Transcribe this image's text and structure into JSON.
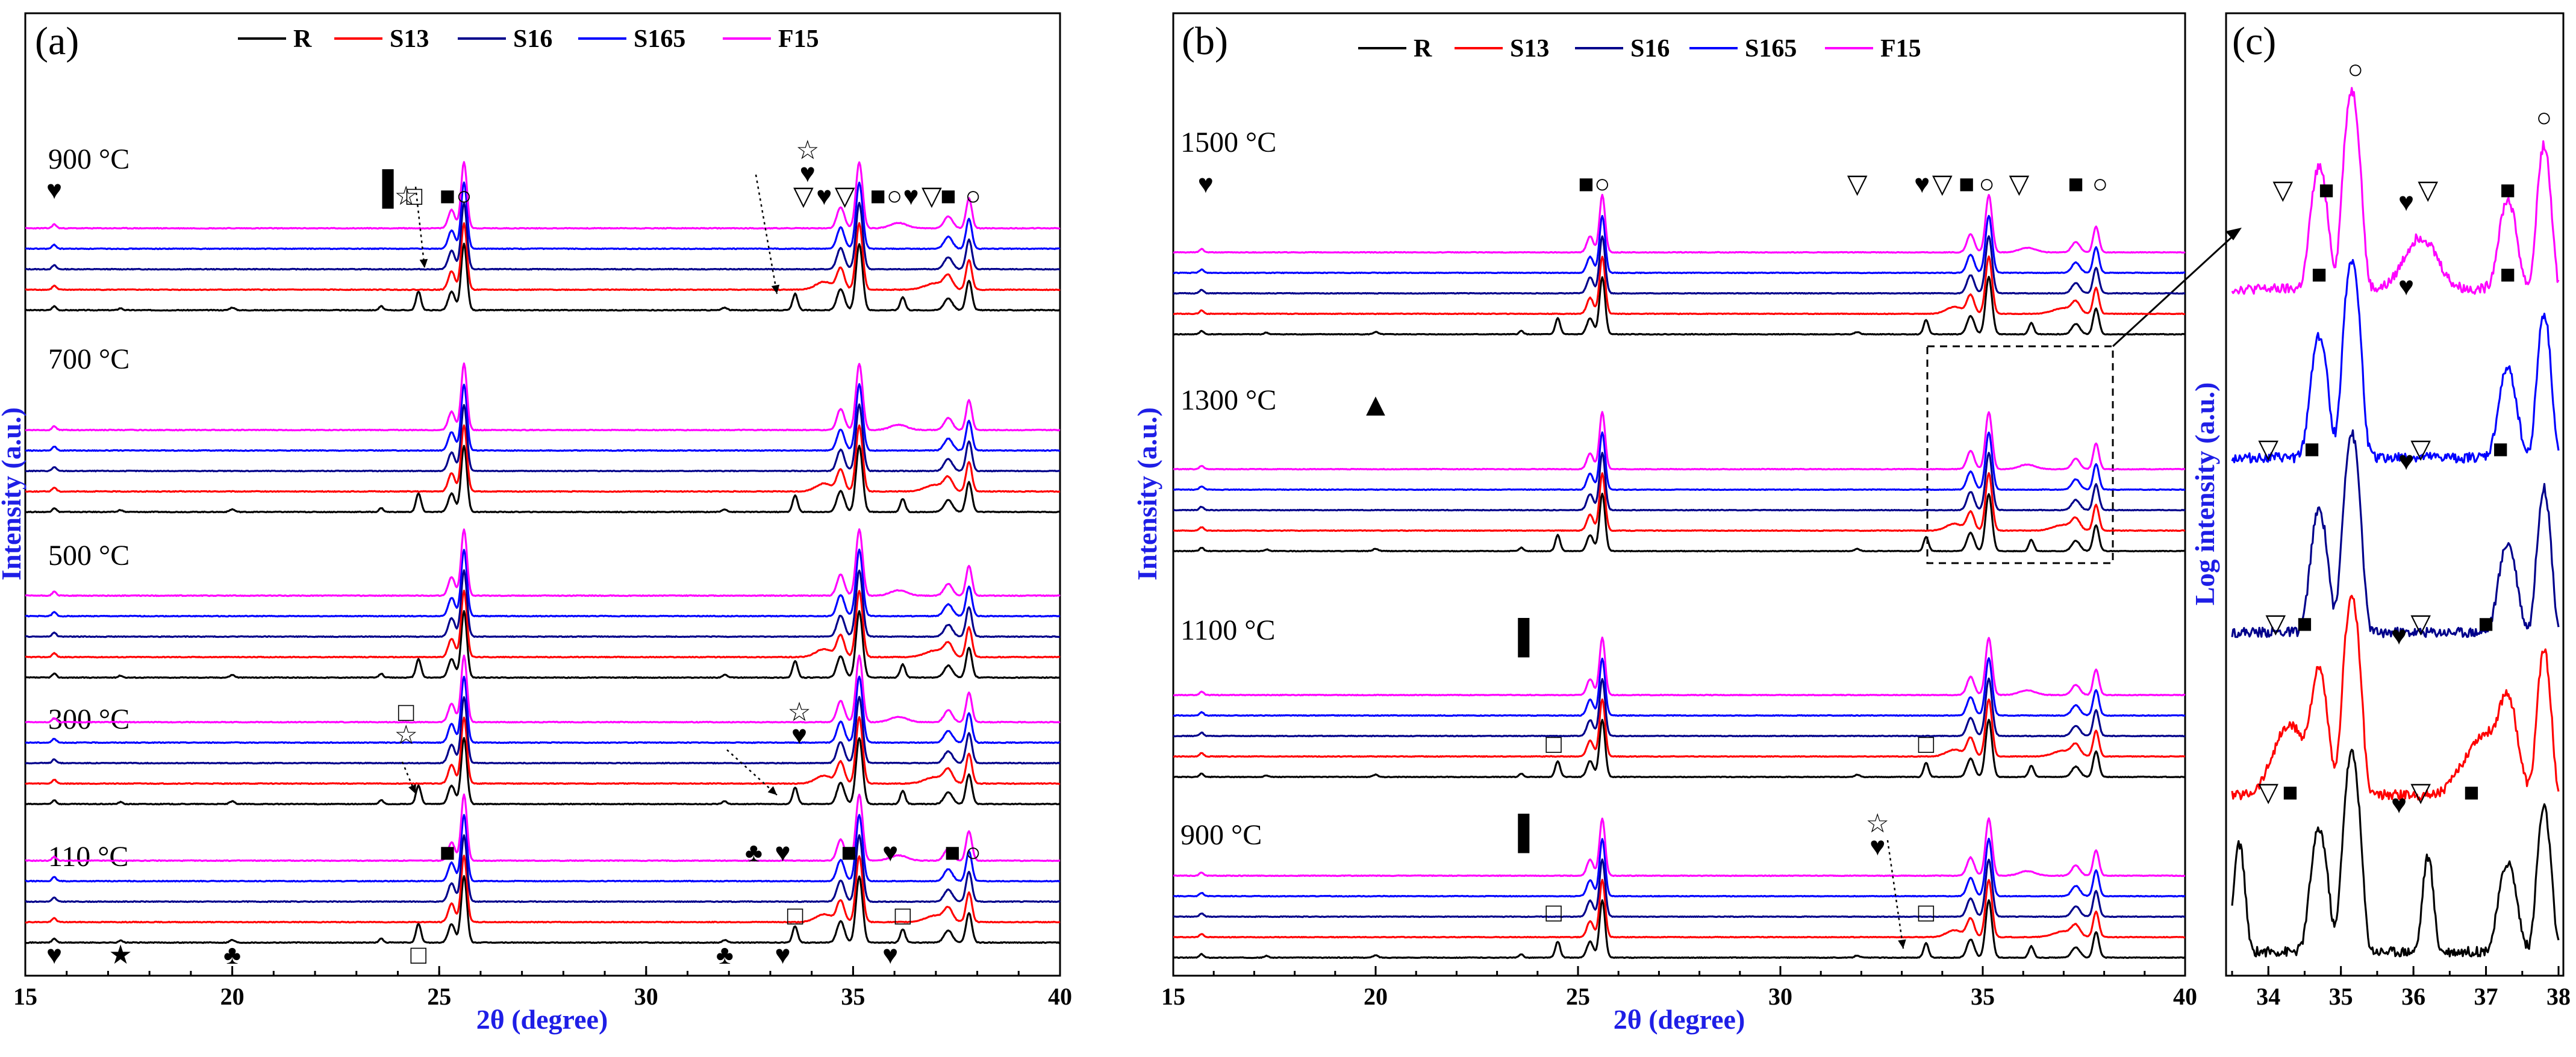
{
  "colors": {
    "R": "#000000",
    "S13": "#ff0000",
    "S16": "#00008b",
    "S165": "#0000ff",
    "F15": "#ff00ff",
    "axis_title": "#1e1ee6"
  },
  "legend": [
    "R",
    "S13",
    "S16",
    "S165",
    "F15"
  ],
  "chart_data": [
    {
      "panel": "(a)",
      "type": "line",
      "xlabel": "2θ (degree)",
      "ylabel": "Intensity (a.u.)",
      "xlim": [
        15,
        40
      ],
      "x_ticks": [
        "15",
        "20",
        "25",
        "30",
        "35",
        "40"
      ],
      "series": [
        "R",
        "S13",
        "S16",
        "S165",
        "F15"
      ],
      "groups": [
        {
          "label": "900 °C",
          "temp": 900
        },
        {
          "label": "700 °C",
          "temp": 700
        },
        {
          "label": "500 °C",
          "temp": 500
        },
        {
          "label": "300 °C",
          "temp": 300
        },
        {
          "label": "110 °C",
          "temp": 110
        }
      ],
      "annotations": [
        {
          "symbol": "■",
          "x": 25.2,
          "group": 900
        },
        {
          "symbol": "○",
          "x": 25.6,
          "group": 900
        },
        {
          "symbol": "▽",
          "x": 33.8,
          "group": 900
        },
        {
          "symbol": "♥",
          "x": 34.3,
          "group": 900
        },
        {
          "symbol": "▽",
          "x": 34.8,
          "group": 900
        },
        {
          "symbol": "■",
          "x": 35.6,
          "group": 900
        },
        {
          "symbol": "○",
          "x": 36.0,
          "group": 900
        },
        {
          "symbol": "♥",
          "x": 36.4,
          "group": 900
        },
        {
          "symbol": "▽",
          "x": 36.9,
          "group": 900
        },
        {
          "symbol": "■",
          "x": 37.3,
          "group": 900
        },
        {
          "symbol": "○",
          "x": 37.9,
          "group": 900
        },
        {
          "symbol": "♥",
          "x": 15.7,
          "group": 900
        },
        {
          "symbol": "☆",
          "x": 24.2,
          "group": 900
        },
        {
          "symbol": "□",
          "x": 24.4,
          "group": 900
        },
        {
          "symbol": "♥",
          "x": 33.9,
          "group": 900
        },
        {
          "symbol": "☆",
          "x": 33.9,
          "group": 900
        },
        {
          "symbol": "☆",
          "x": 24.2,
          "group": 300
        },
        {
          "symbol": "□",
          "x": 24.2,
          "group": 300
        },
        {
          "symbol": "♥",
          "x": 33.7,
          "group": 300
        },
        {
          "symbol": "☆",
          "x": 33.7,
          "group": 300
        },
        {
          "symbol": "■",
          "x": 25.2,
          "group": 110
        },
        {
          "symbol": "♣",
          "x": 32.6,
          "group": 110
        },
        {
          "symbol": "♥",
          "x": 33.3,
          "group": 110
        },
        {
          "symbol": "■",
          "x": 34.9,
          "group": 110
        },
        {
          "symbol": "♥",
          "x": 35.9,
          "group": 110
        },
        {
          "symbol": "■",
          "x": 37.4,
          "group": 110
        },
        {
          "symbol": "○",
          "x": 37.9,
          "group": 110
        },
        {
          "symbol": "♥",
          "x": 15.7,
          "group": 110
        },
        {
          "symbol": "★",
          "x": 17.3,
          "group": 110
        },
        {
          "symbol": "♣",
          "x": 20.0,
          "group": 110
        },
        {
          "symbol": "□",
          "x": 24.5,
          "group": 110
        },
        {
          "symbol": "♣",
          "x": 31.9,
          "group": 110
        },
        {
          "symbol": "♥",
          "x": 33.3,
          "group": 110
        },
        {
          "symbol": "□",
          "x": 33.6,
          "group": 110
        },
        {
          "symbol": "♥",
          "x": 35.9,
          "group": 110
        },
        {
          "symbol": "□",
          "x": 36.2,
          "group": 110
        },
        {
          "symbol": "▌",
          "x": 23.9,
          "group": 900
        }
      ]
    },
    {
      "panel": "(b)",
      "type": "line",
      "xlabel": "2θ (degree)",
      "ylabel": "Intensity (a.u.)",
      "xlim": [
        15,
        40
      ],
      "x_ticks": [
        "15",
        "20",
        "25",
        "30",
        "35",
        "40"
      ],
      "series": [
        "R",
        "S13",
        "S16",
        "S165",
        "F15"
      ],
      "groups": [
        {
          "label": "1500 °C",
          "temp": 1500
        },
        {
          "label": "1300 °C",
          "temp": 1300
        },
        {
          "label": "1100 °C",
          "temp": 1100
        },
        {
          "label": "900 °C",
          "temp": 900
        }
      ],
      "annotations": [
        {
          "symbol": "♥",
          "x": 15.8,
          "group": 1500
        },
        {
          "symbol": "■",
          "x": 25.2,
          "group": 1500
        },
        {
          "symbol": "○",
          "x": 25.6,
          "group": 1500
        },
        {
          "symbol": "▽",
          "x": 31.9,
          "group": 1500
        },
        {
          "symbol": "♥",
          "x": 33.5,
          "group": 1500
        },
        {
          "symbol": "▽",
          "x": 34.0,
          "group": 1500
        },
        {
          "symbol": "■",
          "x": 34.6,
          "group": 1500
        },
        {
          "symbol": "○",
          "x": 35.1,
          "group": 1500
        },
        {
          "symbol": "▽",
          "x": 35.9,
          "group": 1500
        },
        {
          "symbol": "■",
          "x": 37.3,
          "group": 1500
        },
        {
          "symbol": "○",
          "x": 37.9,
          "group": 1500
        },
        {
          "symbol": "▲",
          "x": 20.0,
          "group": 1300
        },
        {
          "symbol": "▌",
          "x": 23.8,
          "group": 1100
        },
        {
          "symbol": "□",
          "x": 24.4,
          "group": 1100
        },
        {
          "symbol": "□",
          "x": 33.6,
          "group": 1100
        },
        {
          "symbol": "▌",
          "x": 23.8,
          "group": 900
        },
        {
          "symbol": "□",
          "x": 24.4,
          "group": 900
        },
        {
          "symbol": "♥",
          "x": 32.4,
          "group": 900
        },
        {
          "symbol": "☆",
          "x": 32.4,
          "group": 900
        },
        {
          "symbol": "□",
          "x": 33.6,
          "group": 900
        }
      ]
    },
    {
      "panel": "(c)",
      "type": "line",
      "xlabel": "",
      "ylabel": "Log intensity (a.u.)",
      "xlim": [
        33.5,
        38
      ],
      "x_ticks": [
        "34",
        "35",
        "36",
        "37",
        "38"
      ],
      "series": [
        "F15",
        "S165",
        "S16",
        "S13",
        "R"
      ],
      "annotations": [
        {
          "symbol": "○",
          "x": 35.2,
          "trace": "F15"
        },
        {
          "symbol": "○",
          "x": 37.8,
          "trace": "F15"
        },
        {
          "symbol": "▽",
          "x": 34.2,
          "trace": "F15"
        },
        {
          "symbol": "■",
          "x": 34.8,
          "trace": "F15"
        },
        {
          "symbol": "♥",
          "x": 35.9,
          "trace": "F15"
        },
        {
          "symbol": "▽",
          "x": 36.2,
          "trace": "F15"
        },
        {
          "symbol": "■",
          "x": 37.3,
          "trace": "F15"
        },
        {
          "symbol": "■",
          "x": 34.7,
          "trace": "S165"
        },
        {
          "symbol": "■",
          "x": 37.3,
          "trace": "S165"
        },
        {
          "symbol": "♥",
          "x": 35.9,
          "trace": "S165"
        },
        {
          "symbol": "■",
          "x": 34.6,
          "trace": "S16"
        },
        {
          "symbol": "■",
          "x": 37.2,
          "trace": "S16"
        },
        {
          "symbol": "▽",
          "x": 34.0,
          "trace": "S16"
        },
        {
          "symbol": "♥",
          "x": 35.9,
          "trace": "S16"
        },
        {
          "symbol": "▽",
          "x": 36.1,
          "trace": "S16"
        },
        {
          "symbol": "■",
          "x": 34.5,
          "trace": "S13"
        },
        {
          "symbol": "■",
          "x": 37.0,
          "trace": "S13"
        },
        {
          "symbol": "▽",
          "x": 34.1,
          "trace": "S13"
        },
        {
          "symbol": "♥",
          "x": 35.8,
          "trace": "S13"
        },
        {
          "symbol": "▽",
          "x": 36.1,
          "trace": "S13"
        },
        {
          "symbol": "▽",
          "x": 34.0,
          "trace": "R"
        },
        {
          "symbol": "■",
          "x": 34.3,
          "trace": "R"
        },
        {
          "symbol": "♥",
          "x": 35.8,
          "trace": "R"
        },
        {
          "symbol": "▽",
          "x": 36.1,
          "trace": "R"
        },
        {
          "symbol": "■",
          "x": 36.8,
          "trace": "R"
        }
      ]
    }
  ]
}
